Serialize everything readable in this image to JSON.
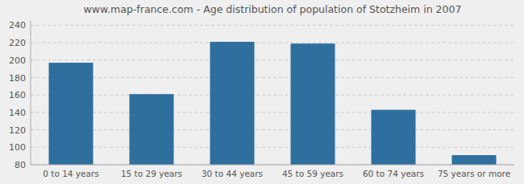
{
  "chart_data": {
    "type": "bar",
    "title": "www.map-france.com - Age distribution of population of Stotzheim in 2007",
    "categories": [
      "0 to 14 years",
      "15 to 29 years",
      "30 to 44 years",
      "45 to 59 years",
      "60 to 74 years",
      "75 years or more"
    ],
    "values": [
      197,
      161,
      221,
      219,
      143,
      91
    ],
    "color": "#2e6f9e",
    "ylim": [
      80,
      245
    ],
    "yticks": [
      80,
      100,
      120,
      140,
      160,
      180,
      200,
      220,
      240
    ],
    "grid": true
  }
}
